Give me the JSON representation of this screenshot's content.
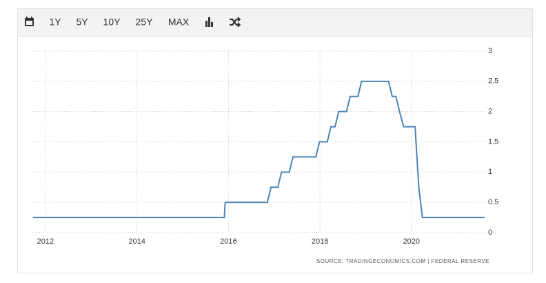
{
  "toolbar": {
    "buttons": [
      "1Y",
      "5Y",
      "10Y",
      "25Y",
      "MAX"
    ]
  },
  "chart_data": {
    "type": "line",
    "x": [
      2011.73,
      2015.91,
      2015.93,
      2016.85,
      2016.93,
      2017.08,
      2017.16,
      2017.33,
      2017.41,
      2017.91,
      2017.99,
      2018.16,
      2018.24,
      2018.33,
      2018.41,
      2018.58,
      2018.66,
      2018.83,
      2018.91,
      2019.5,
      2019.58,
      2019.66,
      2019.74,
      2019.83,
      2020.08,
      2020.16,
      2020.24,
      2021.6
    ],
    "values": [
      0.25,
      0.25,
      0.5,
      0.5,
      0.75,
      0.75,
      1,
      1,
      1.25,
      1.25,
      1.5,
      1.5,
      1.75,
      1.75,
      2,
      2,
      2.25,
      2.25,
      2.5,
      2.5,
      2.25,
      2.25,
      2,
      1.75,
      1.75,
      0.75,
      0.25,
      0.25
    ],
    "color": "#4a83b5",
    "xlim": [
      2011.73,
      2021.6
    ],
    "xticks": [
      2012,
      2014,
      2016,
      2018,
      2020
    ],
    "ylim": [
      0,
      3
    ],
    "yticks": [
      0,
      0.5,
      1,
      1.5,
      2,
      2.5,
      3
    ],
    "grid": true,
    "source": "SOURCE: TRADINGECONOMICS.COM | FEDERAL RESERVE"
  }
}
